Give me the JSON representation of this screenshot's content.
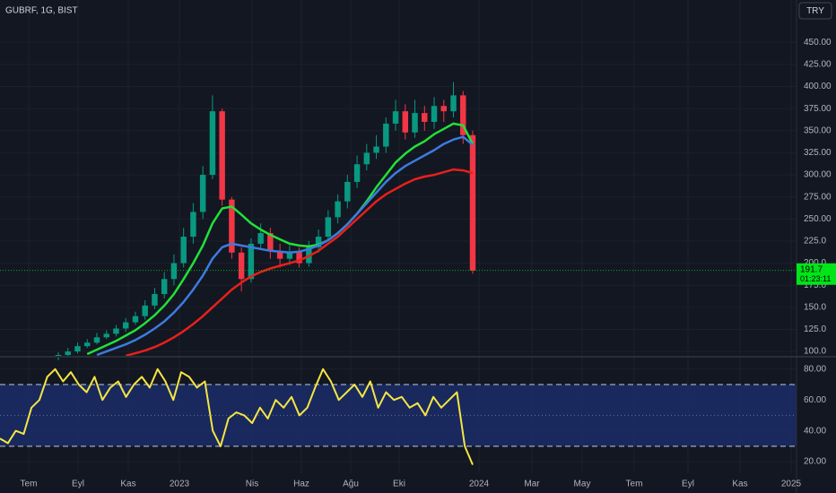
{
  "header": {
    "symbol": "GUBRF, 1G, BIST",
    "currency_button": "TRY"
  },
  "time_axis": {
    "labels": [
      "Tem",
      "Eyl",
      "Kas",
      "2023",
      "Nis",
      "Haz",
      "Ağu",
      "Eki",
      "2024",
      "Mar",
      "May",
      "Tem",
      "Eyl",
      "Kas",
      "2025"
    ]
  },
  "chart_data": [
    {
      "type": "candlestick",
      "up_color": "#089981",
      "down_color": "#f23645",
      "open": [
        93,
        96,
        100,
        106,
        110,
        116,
        120,
        126,
        133,
        140,
        152,
        165,
        182,
        200,
        230,
        258,
        300,
        372,
        272,
        212,
        182,
        222,
        234,
        214,
        205,
        213,
        200,
        218,
        230,
        252,
        270,
        292,
        312,
        325,
        332,
        358,
        372,
        348,
        370,
        360,
        378,
        372,
        390,
        345
      ],
      "high": [
        99,
        104,
        110,
        114,
        121,
        124,
        130,
        138,
        145,
        158,
        172,
        190,
        210,
        240,
        268,
        310,
        390,
        375,
        275,
        218,
        228,
        245,
        240,
        222,
        220,
        218,
        225,
        238,
        260,
        278,
        300,
        322,
        335,
        345,
        365,
        385,
        380,
        385,
        378,
        388,
        385,
        405,
        395,
        350
      ],
      "low": [
        90,
        94,
        98,
        104,
        108,
        114,
        117,
        122,
        130,
        136,
        148,
        160,
        175,
        195,
        222,
        250,
        295,
        265,
        205,
        168,
        178,
        215,
        205,
        195,
        198,
        195,
        196,
        212,
        225,
        245,
        262,
        285,
        305,
        318,
        325,
        350,
        340,
        342,
        350,
        352,
        360,
        365,
        335,
        188
      ],
      "close": [
        96,
        100,
        106,
        110,
        116,
        120,
        126,
        133,
        140,
        152,
        165,
        182,
        200,
        230,
        258,
        300,
        372,
        272,
        212,
        182,
        222,
        234,
        214,
        205,
        213,
        200,
        218,
        230,
        252,
        270,
        292,
        312,
        325,
        332,
        358,
        372,
        348,
        370,
        360,
        378,
        372,
        390,
        345,
        191.7
      ],
      "series": [
        {
          "color": "#22e03a",
          "values": [
            null,
            null,
            null,
            97,
            102,
            107,
            112,
            118,
            124,
            132,
            141,
            152,
            165,
            182,
            200,
            220,
            245,
            262,
            264,
            255,
            245,
            238,
            232,
            227,
            222,
            220,
            219,
            221,
            226,
            234,
            244,
            256,
            270,
            286,
            300,
            314,
            324,
            332,
            338,
            346,
            352,
            358,
            356,
            335
          ]
        },
        {
          "color": "#3d7be0",
          "values": [
            null,
            null,
            null,
            null,
            96,
            100,
            104,
            108,
            113,
            119,
            126,
            134,
            144,
            156,
            170,
            186,
            205,
            218,
            222,
            220,
            218,
            216,
            214,
            213,
            212,
            213,
            216,
            220,
            226,
            234,
            244,
            256,
            268,
            280,
            292,
            302,
            310,
            316,
            322,
            328,
            335,
            340,
            343,
            334
          ]
        },
        {
          "color": "#e8201a",
          "values": [
            null,
            null,
            null,
            null,
            null,
            null,
            null,
            95,
            98,
            101,
            105,
            110,
            116,
            123,
            131,
            140,
            150,
            160,
            170,
            178,
            185,
            190,
            194,
            197,
            200,
            203,
            208,
            214,
            222,
            230,
            240,
            250,
            260,
            270,
            278,
            284,
            290,
            295,
            298,
            300,
            303,
            306,
            305,
            302
          ]
        }
      ],
      "last_price": {
        "value": 191.7,
        "countdown": "01:23:11",
        "color": "#00e51a"
      },
      "ylim": [
        94,
        498
      ],
      "yticks": [
        {
          "value": 450,
          "label": "450.00"
        },
        {
          "value": 425,
          "label": "425.00"
        },
        {
          "value": 400,
          "label": "400.00"
        },
        {
          "value": 375,
          "label": "375.00"
        },
        {
          "value": 350,
          "label": "350.00"
        },
        {
          "value": 325,
          "label": "325.00"
        },
        {
          "value": 300,
          "label": "300.00"
        },
        {
          "value": 275,
          "label": "275.00"
        },
        {
          "value": 250,
          "label": "250.00"
        },
        {
          "value": 225,
          "label": "225.0"
        },
        {
          "value": 200,
          "label": "200.0"
        },
        {
          "value": 175,
          "label": "175.0"
        },
        {
          "value": 150,
          "label": "150.0"
        },
        {
          "value": 125,
          "label": "125.0"
        },
        {
          "value": 100,
          "label": "100.0"
        }
      ],
      "grid": true
    },
    {
      "type": "line",
      "series": [
        {
          "color": "#f5e642",
          "values": [
            35,
            32,
            40,
            38,
            55,
            60,
            75,
            80,
            72,
            78,
            70,
            65,
            75,
            60,
            68,
            72,
            62,
            70,
            75,
            68,
            80,
            72,
            60,
            78,
            75,
            68,
            72,
            40,
            30,
            48,
            52,
            50,
            45,
            55,
            48,
            60,
            55,
            62,
            50,
            55,
            68,
            80,
            72,
            60,
            65,
            70,
            62,
            72,
            55,
            65,
            60,
            62,
            55,
            58,
            50,
            62,
            55,
            60,
            65,
            30,
            18
          ]
        }
      ],
      "bands": [
        70,
        30
      ],
      "midline": 50,
      "band_color": "#1c2e6e",
      "ylim": [
        12.5,
        88
      ],
      "yticks": [
        {
          "value": 80,
          "label": "80.00"
        },
        {
          "value": 60,
          "label": "60.00"
        },
        {
          "value": 40,
          "label": "40.00"
        },
        {
          "value": 20,
          "label": "20.00"
        }
      ],
      "grid": true
    }
  ]
}
